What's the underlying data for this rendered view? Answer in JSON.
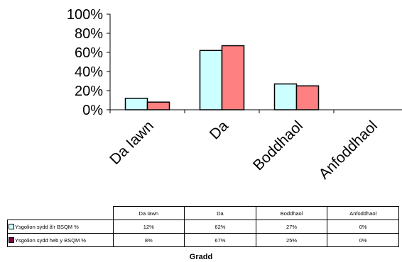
{
  "chart_data": {
    "type": "bar",
    "categories": [
      "Da Iawn",
      "Da",
      "Boddhaol",
      "Anfoddhaol"
    ],
    "series": [
      {
        "name": "Ysgolion sydd â'r BSQM %",
        "values": [
          12,
          62,
          27,
          0
        ],
        "display": [
          "12%",
          "62%",
          "27%",
          "0%"
        ],
        "color": "#ccffff"
      },
      {
        "name": "Ysgolion sydd heb y BSQM %",
        "values": [
          8,
          67,
          25,
          0
        ],
        "display": [
          "8%",
          "67%",
          "25%",
          "0%"
        ],
        "color": "#ff8080"
      }
    ],
    "yticks": [
      "0%",
      "20%",
      "40%",
      "60%",
      "80%",
      "100%"
    ],
    "ylim": [
      0,
      100
    ],
    "xlabel": "Gradd",
    "legend": "data table below chart"
  }
}
